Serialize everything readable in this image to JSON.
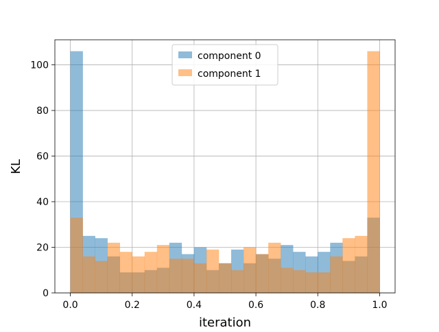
{
  "chart_data": {
    "type": "bar",
    "subtype": "overlapping-histogram",
    "title": "",
    "xlabel": "iteration",
    "ylabel": "KL",
    "xlim": [
      -0.05,
      1.05
    ],
    "ylim": [
      0,
      111
    ],
    "x_ticks": [
      0.0,
      0.2,
      0.4,
      0.6,
      0.8,
      1.0
    ],
    "x_tick_labels": [
      "0.0",
      "0.2",
      "0.4",
      "0.6",
      "0.8",
      "1.0"
    ],
    "y_ticks": [
      0,
      20,
      40,
      60,
      80,
      100
    ],
    "y_tick_labels": [
      "0",
      "20",
      "40",
      "60",
      "80",
      "100"
    ],
    "grid": true,
    "legend_position": "top-center",
    "bin_edges": [
      0.0,
      0.04,
      0.08,
      0.12,
      0.16,
      0.2,
      0.24,
      0.28,
      0.32,
      0.36,
      0.4,
      0.44,
      0.48,
      0.52,
      0.56,
      0.6,
      0.64,
      0.68,
      0.72,
      0.76,
      0.8,
      0.84,
      0.88,
      0.92,
      0.96,
      1.0
    ],
    "series": [
      {
        "name": "component 0",
        "color": "#1f77b4",
        "alpha": 0.5,
        "values": [
          106,
          25,
          24,
          16,
          9,
          9,
          10,
          11,
          22,
          17,
          20,
          10,
          13,
          19,
          13,
          17,
          15,
          21,
          18,
          16,
          18,
          22,
          14,
          16,
          33
        ]
      },
      {
        "name": "component 1",
        "color": "#ff7f0e",
        "alpha": 0.5,
        "values": [
          33,
          16,
          14,
          22,
          18,
          16,
          18,
          21,
          15,
          15,
          13,
          19,
          13,
          10,
          20,
          17,
          22,
          11,
          10,
          9,
          9,
          16,
          24,
          25,
          106
        ]
      }
    ]
  }
}
